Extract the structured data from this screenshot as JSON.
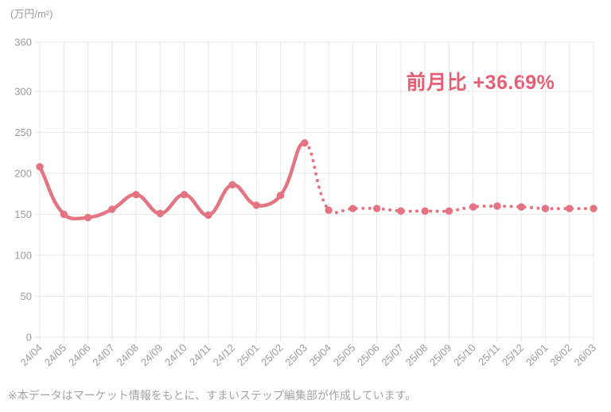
{
  "footnote": "※本データはマーケット情報をもとに、すまいステップ編集部が作成しています。",
  "chart_data": {
    "type": "line",
    "title": "",
    "ylabel": "(万円/m²)",
    "xlabel": "",
    "annotation": "前月比 +36.69%",
    "categories": [
      "24/04",
      "24/05",
      "24/06",
      "24/07",
      "24/08",
      "24/09",
      "24/10",
      "24/11",
      "24/12",
      "25/01",
      "25/02",
      "25/03",
      "25/04",
      "25/05",
      "25/06",
      "25/07",
      "25/08",
      "25/09",
      "25/10",
      "25/11",
      "25/12",
      "26/01",
      "26/02",
      "26/03"
    ],
    "values": [
      208,
      150,
      146,
      156,
      174,
      151,
      174,
      149,
      186,
      161,
      173,
      237,
      155,
      157,
      157,
      154,
      154,
      154,
      159,
      160,
      159,
      157,
      157,
      157
    ],
    "solid_segment_end_index": 11,
    "ylim": [
      0,
      360
    ],
    "yticks": [
      0,
      50,
      100,
      150,
      200,
      250,
      300,
      360
    ],
    "grid": true,
    "legend": "none",
    "line_color": "#e57482",
    "annotation_color": "#e75d73",
    "grid_color": "#e7e7e7",
    "tick_color": "#9b9b9b"
  }
}
